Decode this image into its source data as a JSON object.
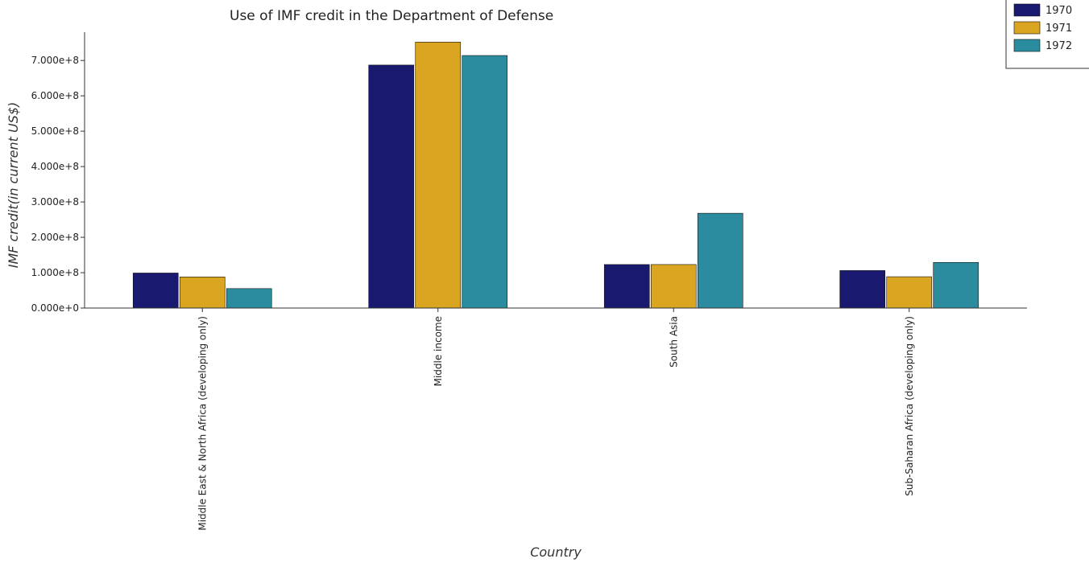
{
  "chart_data": {
    "type": "bar",
    "title": "Use of IMF credit in the Department of Defense",
    "xlabel": "Country",
    "ylabel": "IMF credit(in current US$)",
    "categories": [
      "Middle East & North Africa (developing only)",
      "Middle income",
      "South Asia",
      "Sub-Saharan Africa (developing only)"
    ],
    "series": [
      {
        "name": "1970",
        "color": "#191970",
        "values": [
          99000000,
          687000000,
          123000000,
          106000000
        ]
      },
      {
        "name": "1971",
        "color": "#DAA520",
        "values": [
          88000000,
          752000000,
          123000000,
          88500000
        ]
      },
      {
        "name": "1972",
        "color": "#2A8C9E",
        "values": [
          55000000,
          714000000,
          268000000,
          129000000
        ]
      }
    ],
    "ylim": [
      0,
      780000000
    ],
    "yticks": [
      0,
      100000000,
      200000000,
      300000000,
      400000000,
      500000000,
      600000000,
      700000000
    ],
    "ytick_labels": [
      "0.000e+0",
      "1.000e+8",
      "2.000e+8",
      "3.000e+8",
      "4.000e+8",
      "5.000e+8",
      "6.000e+8",
      "7.000e+8"
    ],
    "grid": false,
    "legend_position": "top-right"
  }
}
